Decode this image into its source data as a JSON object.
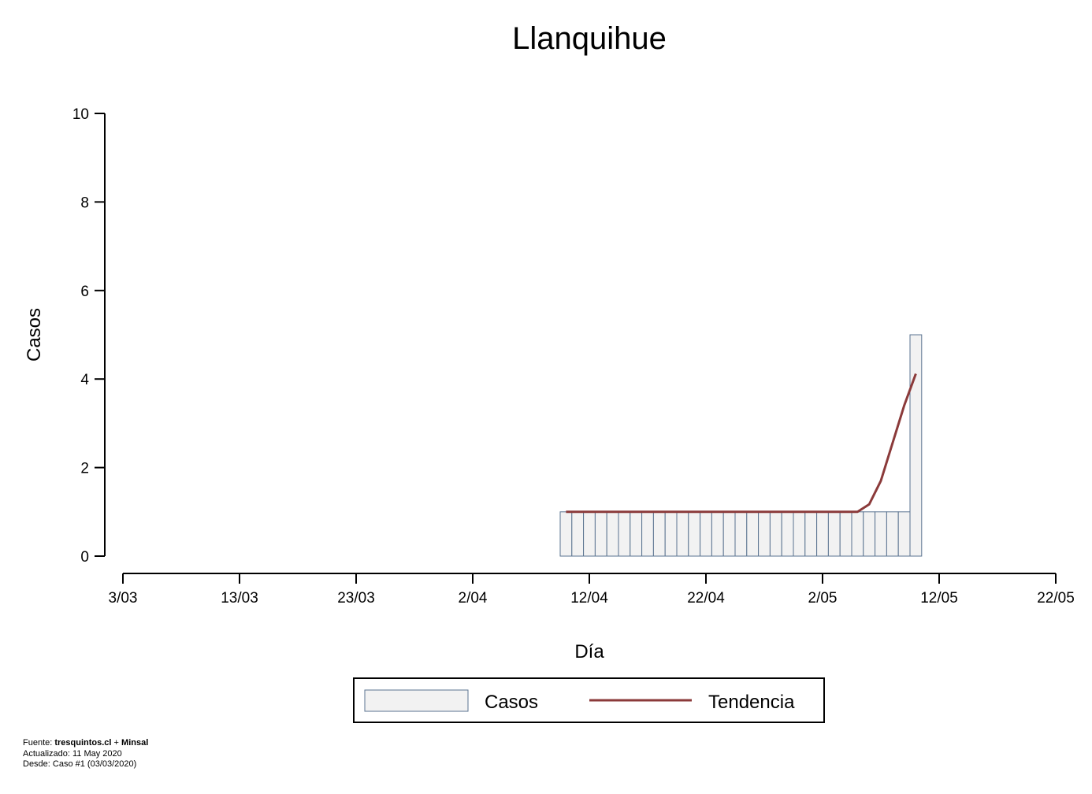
{
  "chart_data": {
    "type": "bar",
    "title": "Llanquihue",
    "xlabel": "Día",
    "ylabel": "Casos",
    "ylim": [
      0,
      10
    ],
    "yticks": [
      0,
      2,
      4,
      6,
      8,
      10
    ],
    "xlim": [
      "2020-03-03",
      "2020-05-22"
    ],
    "xticks": [
      {
        "date": "2020-03-03",
        "label": "3/03"
      },
      {
        "date": "2020-03-13",
        "label": "13/03"
      },
      {
        "date": "2020-03-23",
        "label": "23/03"
      },
      {
        "date": "2020-04-02",
        "label": "2/04"
      },
      {
        "date": "2020-04-12",
        "label": "12/04"
      },
      {
        "date": "2020-04-22",
        "label": "22/04"
      },
      {
        "date": "2020-05-02",
        "label": "2/05"
      },
      {
        "date": "2020-05-12",
        "label": "12/05"
      },
      {
        "date": "2020-05-22",
        "label": "22/05"
      }
    ],
    "grid": false,
    "legend_position": "bottom",
    "series": [
      {
        "name": "Casos",
        "type": "bar",
        "color": "#f2f2f2",
        "edge_color": "#5a7390",
        "x": [
          "2020-04-10",
          "2020-04-11",
          "2020-04-12",
          "2020-04-13",
          "2020-04-14",
          "2020-04-15",
          "2020-04-16",
          "2020-04-17",
          "2020-04-18",
          "2020-04-19",
          "2020-04-20",
          "2020-04-21",
          "2020-04-22",
          "2020-04-23",
          "2020-04-24",
          "2020-04-25",
          "2020-04-26",
          "2020-04-27",
          "2020-04-28",
          "2020-04-29",
          "2020-04-30",
          "2020-05-01",
          "2020-05-02",
          "2020-05-03",
          "2020-05-04",
          "2020-05-05",
          "2020-05-06",
          "2020-05-07",
          "2020-05-08",
          "2020-05-09",
          "2020-05-10"
        ],
        "values": [
          1,
          1,
          1,
          1,
          1,
          1,
          1,
          1,
          1,
          1,
          1,
          1,
          1,
          1,
          1,
          1,
          1,
          1,
          1,
          1,
          1,
          1,
          1,
          1,
          1,
          1,
          1,
          1,
          1,
          1,
          5
        ]
      },
      {
        "name": "Tendencia",
        "type": "line",
        "color": "#8b3a3a",
        "x": [
          "2020-04-10",
          "2020-04-11",
          "2020-04-12",
          "2020-04-13",
          "2020-04-14",
          "2020-04-15",
          "2020-04-16",
          "2020-04-17",
          "2020-04-18",
          "2020-04-19",
          "2020-04-20",
          "2020-04-21",
          "2020-04-22",
          "2020-04-23",
          "2020-04-24",
          "2020-04-25",
          "2020-04-26",
          "2020-04-27",
          "2020-04-28",
          "2020-04-29",
          "2020-04-30",
          "2020-05-01",
          "2020-05-02",
          "2020-05-03",
          "2020-05-04",
          "2020-05-05",
          "2020-05-06",
          "2020-05-07",
          "2020-05-08",
          "2020-05-09",
          "2020-05-10"
        ],
        "values": [
          1,
          1,
          1,
          1,
          1,
          1,
          1,
          1,
          1,
          1,
          1,
          1,
          1,
          1,
          1,
          1,
          1,
          1,
          1,
          1,
          1,
          1,
          1,
          1,
          1,
          1,
          1.17,
          1.7,
          2.55,
          3.4,
          4.12
        ]
      }
    ]
  },
  "footer": {
    "source_prefix": "Fuente: ",
    "source_site": "tresquintos.cl",
    "source_sep": " + ",
    "source_org": "Minsal",
    "updated": "Actualizado: 11 May 2020",
    "since": "Desde: Caso #1  (03/03/2020)"
  }
}
